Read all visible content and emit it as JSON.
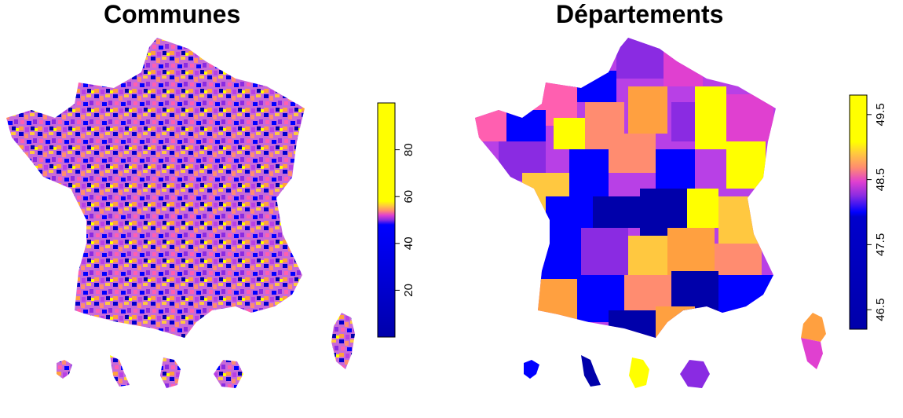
{
  "panels": [
    {
      "title": "Communes",
      "legend": {
        "ticks": [
          "20",
          "40",
          "60",
          "80"
        ],
        "tick_values": [
          20,
          40,
          60,
          80
        ],
        "range": [
          0,
          100
        ]
      },
      "palette_note": "fine-grained commune mosaic"
    },
    {
      "title": "Départements",
      "legend": {
        "ticks": [
          "46.5",
          "47.5",
          "48.5",
          "49.5"
        ],
        "tick_values": [
          46.5,
          47.5,
          48.5,
          49.5
        ],
        "range": [
          46.2,
          49.8
        ]
      },
      "palette_note": "department-level choropleth"
    }
  ],
  "colors": {
    "dark_blue": "#0000AA",
    "blue": "#0000FF",
    "violet": "#8A2BE2",
    "purple": "#B840E6",
    "magenta": "#E040D0",
    "pink": "#FF5FB0",
    "salmon": "#FF8C70",
    "orange": "#FFA040",
    "gold": "#FFC840",
    "yellow": "#FFFF00"
  }
}
